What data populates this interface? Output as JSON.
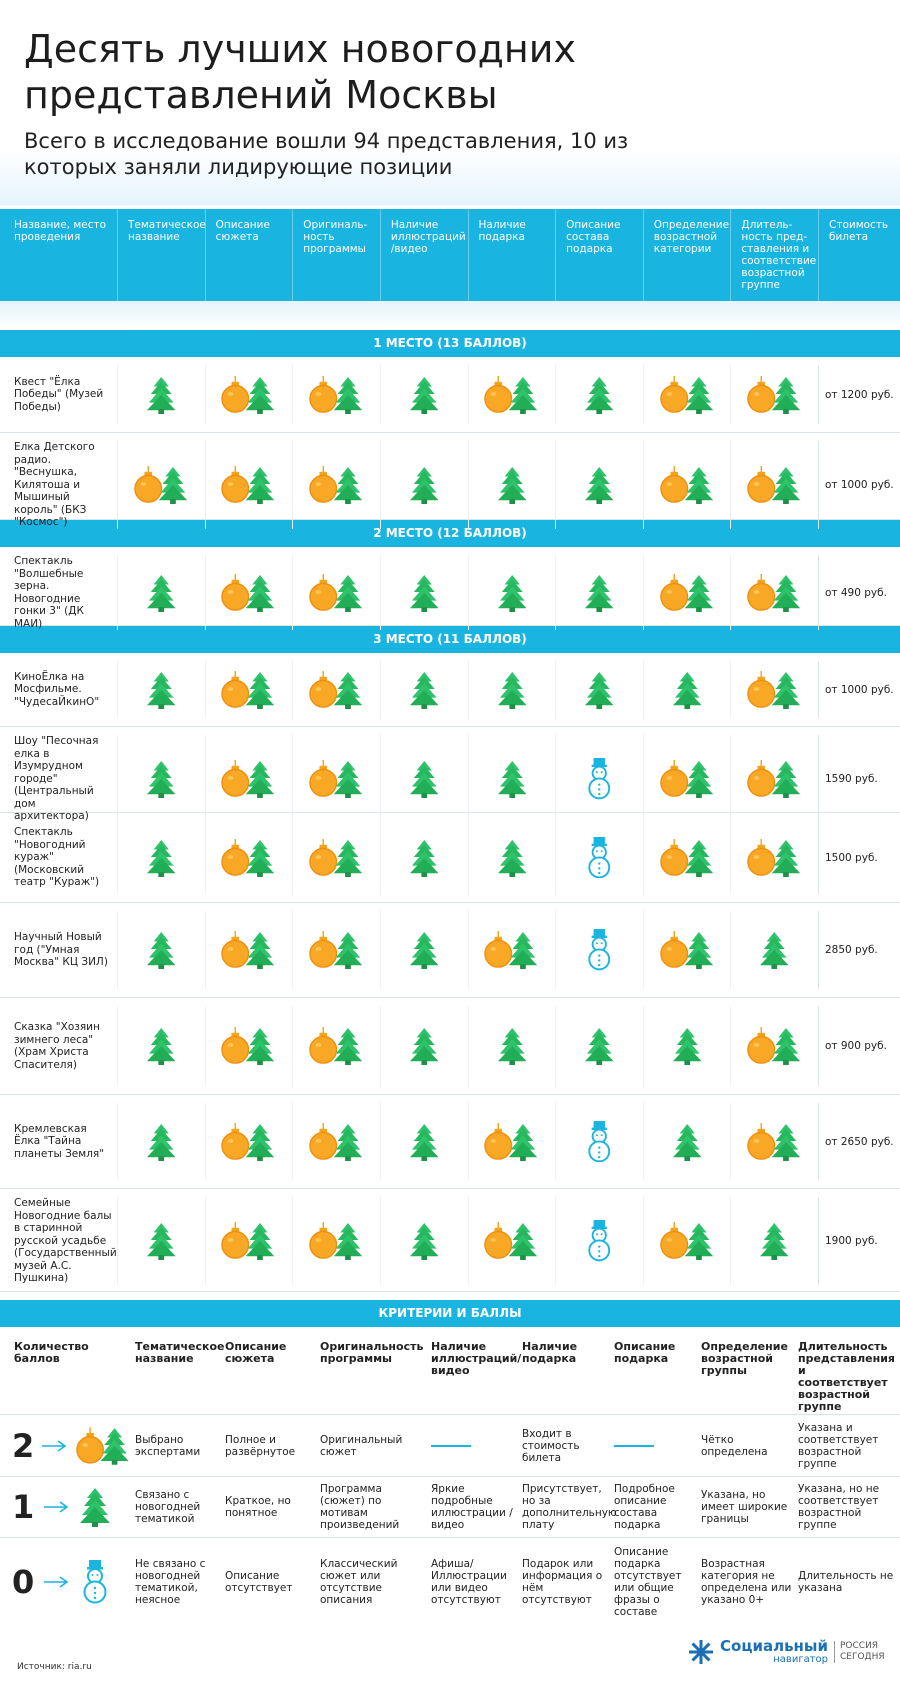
{
  "header": {
    "title": "Десять лучших новогодних представлений Москвы",
    "subtitle": "Всего в исследование вошли 94 представления, 10 из которых заняли лидирующие позиции"
  },
  "table": {
    "columns": [
      "Название, место проведения",
      "Тематическое название",
      "Описание сюжета",
      "Оригиналь-ность программы",
      "Наличие иллюстраций /видео",
      "Наличие подарка",
      "Описание состава подарка",
      "Определение возрастной категории",
      "Длитель-ность пред-ставления и соответствие возрастной группе",
      "Стоимость билета"
    ],
    "groups": [
      {
        "label": "1 МЕСТО (13 БАЛЛОВ)",
        "rows": [
          {
            "name": "Квест \"Ёлка Победы\" (Музей Победы)",
            "scores": [
              1,
              2,
              2,
              1,
              2,
              1,
              2,
              2
            ],
            "price": "от 1200 руб."
          },
          {
            "name": "Елка Детского радио. \"Веснушка, Килятоша и Мышиный король\" (БКЗ \"Космос\")",
            "scores": [
              2,
              2,
              2,
              1,
              1,
              1,
              2,
              2
            ],
            "price": "от 1000 руб."
          }
        ]
      },
      {
        "label": "2 МЕСТО (12 БАЛЛОВ)",
        "rows": [
          {
            "name": "Спектакль \"Волшебные зерна. Новогодние гонки 3\" (ДК МАИ)",
            "scores": [
              1,
              2,
              2,
              1,
              1,
              1,
              2,
              2
            ],
            "price": "от 490 руб."
          }
        ]
      },
      {
        "label": "3 МЕСТО (11 БАЛЛОВ)",
        "rows": [
          {
            "name": "КиноЁлка на Мосфильме. \"ЧудесаЙкинО\"",
            "scores": [
              1,
              2,
              2,
              1,
              1,
              1,
              1,
              2
            ],
            "price": "от 1000 руб."
          },
          {
            "name": "Шоу \"Песочная елка в Изумрудном городе\" (Центральный дом архитектора)",
            "scores": [
              1,
              2,
              2,
              1,
              1,
              0,
              2,
              2
            ],
            "price": "1590 руб."
          },
          {
            "name": "Спектакль \"Новогодний кураж\" (Московский театр \"Кураж\")",
            "scores": [
              1,
              2,
              2,
              1,
              1,
              0,
              2,
              2
            ],
            "price": "1500 руб."
          },
          {
            "name": "Научный Новый год (\"Умная Москва\" КЦ ЗИЛ)",
            "scores": [
              1,
              2,
              2,
              1,
              2,
              0,
              2,
              1
            ],
            "price": "2850 руб."
          },
          {
            "name": "Сказка \"Хозяин зимнего леса\" (Храм Христа Спасителя)",
            "scores": [
              1,
              2,
              2,
              1,
              1,
              1,
              1,
              2
            ],
            "price": "от 900 руб."
          },
          {
            "name": "Кремлевская Ёлка \"Тайна планеты Земля\"",
            "scores": [
              1,
              2,
              2,
              1,
              2,
              0,
              1,
              2
            ],
            "price": "от 2650 руб."
          },
          {
            "name": "Семейные Новогодние балы в старинной русской усадьбе (Государственный музей А.С. Пушкина)",
            "scores": [
              1,
              2,
              2,
              1,
              2,
              0,
              2,
              1
            ],
            "price": "1900 руб."
          }
        ]
      }
    ]
  },
  "criteria": {
    "label": "КРИТЕРИИ И БАЛЛЫ",
    "columns": [
      "Количество баллов",
      "Тематическое название",
      "Описание сюжета",
      "Оригинальность программы",
      "Наличие иллюстраций/ видео",
      "Наличие подарка",
      "Описание подарка",
      "Определение возрастной группы",
      "Длительность представления и соответствует возрастной группе"
    ],
    "rows": [
      {
        "score": 2,
        "cells": [
          "Выбрано экспертами",
          "Полное и развёрнутое",
          "Оригинальный сюжет",
          null,
          "Входит в стоимость билета",
          null,
          "Чётко определена",
          "Указана и соответствует возрастной группе"
        ]
      },
      {
        "score": 1,
        "cells": [
          "Связано с новогодней тематикой",
          "Краткое, но понятное",
          "Программа (сюжет) по мотивам произведений",
          "Яркие подробные иллюстрации /видео",
          "Присутствует, но за дополнительную плату",
          "Подробное описание состава подарка",
          "Указана, но имеет широкие границы",
          "Указана, но не соответствует возрастной группе"
        ]
      },
      {
        "score": 0,
        "cells": [
          "Не связано с новогодней тематикой, неясное",
          "Описание отсутствует",
          "Классический сюжет или отсутствие описания",
          "Афиша/Иллюстрации или видео отсутствуют",
          "Подарок или информация о нём отсутствуют",
          "Описание подарка отсутствует или общие фразы о составе",
          "Возрастная категория не определена или указано 0+",
          "Длительность не указана"
        ]
      }
    ]
  },
  "footer": {
    "source": "Источник: ria.ru",
    "logo_main": "Социальный",
    "logo_sub": "навигатор",
    "logo_partner": "РОССИЯ СЕГОДНЯ"
  }
}
